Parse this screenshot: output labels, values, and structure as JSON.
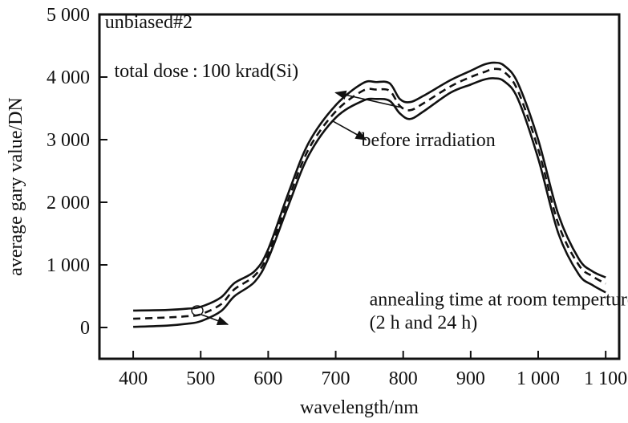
{
  "chart_data": {
    "type": "line",
    "title": "",
    "xlabel": "wavelength/nm",
    "ylabel": "average gary value/DN",
    "xlim": [
      350,
      1120
    ],
    "ylim": [
      -500,
      5000
    ],
    "x_ticks": [
      400,
      500,
      600,
      700,
      800,
      900,
      1000,
      1100
    ],
    "x_tick_labels": [
      "400",
      "500",
      "600",
      "700",
      "800",
      "900",
      "1 000",
      "1 100"
    ],
    "y_ticks": [
      0,
      1000,
      2000,
      3000,
      4000,
      5000
    ],
    "y_tick_labels": [
      "0",
      "1 000",
      "2 000",
      "3 000",
      "4 000",
      "5 000"
    ],
    "grid": false,
    "legend": "none",
    "series": [
      {
        "style": "solid",
        "x": [
          400,
          450,
          480,
          500,
          530,
          550,
          580,
          600,
          630,
          660,
          700,
          740,
          760,
          780,
          795,
          810,
          830,
          870,
          900,
          920,
          935,
          950,
          970,
          1000,
          1030,
          1060,
          1080,
          1100
        ],
        "y": [
          270,
          280,
          300,
          330,
          480,
          710,
          900,
          1250,
          2150,
          2950,
          3550,
          3900,
          3920,
          3900,
          3650,
          3600,
          3700,
          3950,
          4100,
          4200,
          4230,
          4180,
          3900,
          3000,
          1800,
          1100,
          900,
          800
        ]
      },
      {
        "style": "dashed",
        "x": [
          400,
          450,
          480,
          500,
          530,
          550,
          580,
          600,
          630,
          660,
          700,
          740,
          760,
          780,
          795,
          810,
          830,
          870,
          900,
          920,
          935,
          950,
          970,
          1000,
          1030,
          1060,
          1080,
          1100
        ],
        "y": [
          140,
          160,
          180,
          210,
          370,
          610,
          830,
          1170,
          2050,
          2850,
          3450,
          3780,
          3800,
          3780,
          3540,
          3470,
          3580,
          3850,
          4000,
          4080,
          4130,
          4080,
          3780,
          2850,
          1650,
          1000,
          820,
          700
        ]
      },
      {
        "style": "solid",
        "x": [
          400,
          450,
          480,
          500,
          530,
          550,
          580,
          600,
          630,
          660,
          700,
          740,
          760,
          780,
          795,
          810,
          830,
          870,
          900,
          920,
          935,
          950,
          970,
          1000,
          1030,
          1060,
          1080,
          1100
        ],
        "y": [
          10,
          30,
          60,
          100,
          260,
          500,
          730,
          1100,
          1950,
          2750,
          3350,
          3620,
          3650,
          3620,
          3420,
          3330,
          3450,
          3750,
          3880,
          3960,
          3980,
          3930,
          3650,
          2700,
          1500,
          850,
          680,
          560
        ]
      }
    ],
    "annotations": [
      {
        "text": "unbiased#2",
        "x": 358,
        "y": 4780
      },
      {
        "text": "total dose : 100 krad(Si)",
        "x": 372,
        "y": 4000,
        "arrow_to": [
          700,
          3750
        ]
      },
      {
        "text": "before irradiation",
        "x": 738,
        "y": 2900,
        "arrow_from": [
          695,
          3300
        ],
        "arrow_to": [
          745,
          3000
        ]
      },
      {
        "text": "annealing time at room temperture",
        "x": 750,
        "y": 355
      },
      {
        "text": "(2 h and 24 h)",
        "x": 750,
        "y": -20,
        "marker_at": [
          495,
          270
        ],
        "arrow_to": [
          540,
          50
        ]
      }
    ]
  }
}
